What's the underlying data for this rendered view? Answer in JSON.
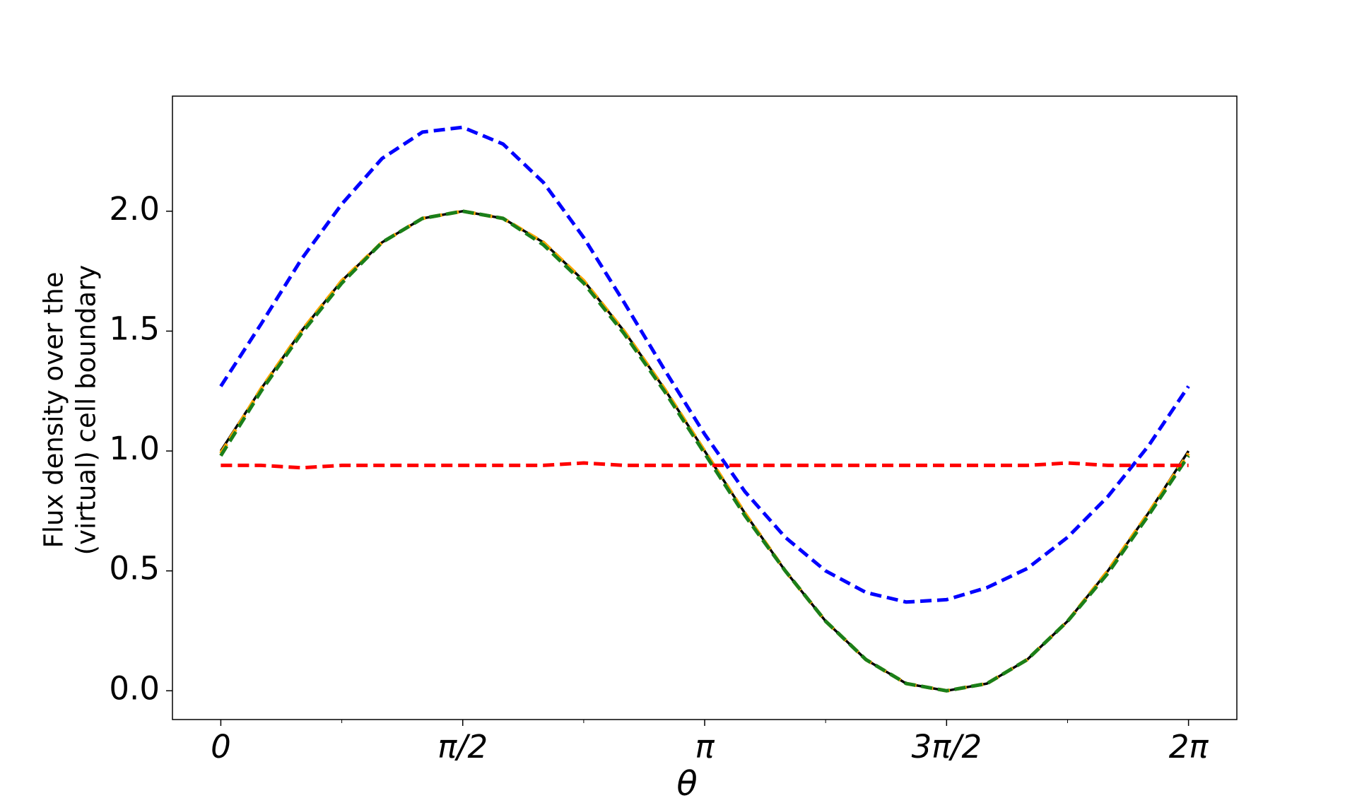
{
  "chart_data": {
    "type": "line",
    "xlabel": "θ",
    "ylabel": [
      "Flux density over the",
      "(virtual) cell boundary"
    ],
    "x": [
      0,
      0.2618,
      0.5236,
      0.7854,
      1.0472,
      1.309,
      1.5708,
      1.8326,
      2.0944,
      2.3562,
      2.618,
      2.8798,
      3.1416,
      3.4034,
      3.6652,
      3.927,
      4.1888,
      4.4506,
      4.7124,
      4.9742,
      5.236,
      5.4978,
      5.7596,
      6.0214,
      6.2832
    ],
    "series": [
      {
        "color": "#000000",
        "linestyle": "solid",
        "values": [
          1,
          1.26,
          1.5,
          1.71,
          1.87,
          1.97,
          2,
          1.97,
          1.87,
          1.71,
          1.5,
          1.26,
          1,
          0.74,
          0.5,
          0.29,
          0.13,
          0.03,
          0,
          0.03,
          0.13,
          0.29,
          0.5,
          0.74,
          1
        ]
      },
      {
        "color": "#ffa500",
        "linestyle": "dashed",
        "values": [
          0.99,
          1.26,
          1.5,
          1.71,
          1.87,
          1.97,
          2,
          1.97,
          1.87,
          1.71,
          1.5,
          1.26,
          1,
          0.74,
          0.5,
          0.29,
          0.13,
          0.03,
          0,
          0.03,
          0.13,
          0.29,
          0.5,
          0.74,
          0.99
        ]
      },
      {
        "color": "#1a7f1a",
        "linestyle": "dashed",
        "values": [
          0.98,
          1.25,
          1.49,
          1.7,
          1.87,
          1.97,
          2,
          1.97,
          1.86,
          1.7,
          1.49,
          1.25,
          0.99,
          0.73,
          0.5,
          0.29,
          0.13,
          0.03,
          0,
          0.03,
          0.13,
          0.29,
          0.49,
          0.73,
          0.98
        ]
      },
      {
        "color": "#0000ff",
        "linestyle": "dashed",
        "values": [
          1.27,
          1.53,
          1.8,
          2.03,
          2.22,
          2.33,
          2.35,
          2.28,
          2.12,
          1.89,
          1.62,
          1.34,
          1.07,
          0.83,
          0.64,
          0.5,
          0.41,
          0.37,
          0.38,
          0.43,
          0.51,
          0.64,
          0.81,
          1.02,
          1.27
        ]
      },
      {
        "color": "#ff0000",
        "linestyle": "dashed",
        "values": [
          0.94,
          0.94,
          0.93,
          0.94,
          0.94,
          0.94,
          0.94,
          0.94,
          0.94,
          0.95,
          0.94,
          0.94,
          0.94,
          0.94,
          0.94,
          0.94,
          0.94,
          0.94,
          0.94,
          0.94,
          0.94,
          0.95,
          0.94,
          0.94,
          0.94
        ]
      }
    ],
    "xlim": [
      -0.314,
      6.597
    ],
    "ylim": [
      -0.12,
      2.48
    ],
    "xticks": [
      0,
      {
        "value": 1.5708,
        "label": "π/2"
      },
      {
        "value": 3.1416,
        "label": "π"
      },
      {
        "value": 4.7124,
        "label": "3π/2"
      },
      {
        "value": 6.2832,
        "label": "2π"
      }
    ],
    "xminorticks": [
      0.7854,
      2.3562,
      3.927,
      5.4978
    ],
    "yticks": [
      {
        "value": 0,
        "label": "0.0"
      },
      {
        "value": 0.5,
        "label": "0.5"
      },
      {
        "value": 1,
        "label": "1.0"
      },
      {
        "value": 1.5,
        "label": "1.5"
      },
      {
        "value": 2,
        "label": "2.0"
      }
    ],
    "grid": false
  }
}
